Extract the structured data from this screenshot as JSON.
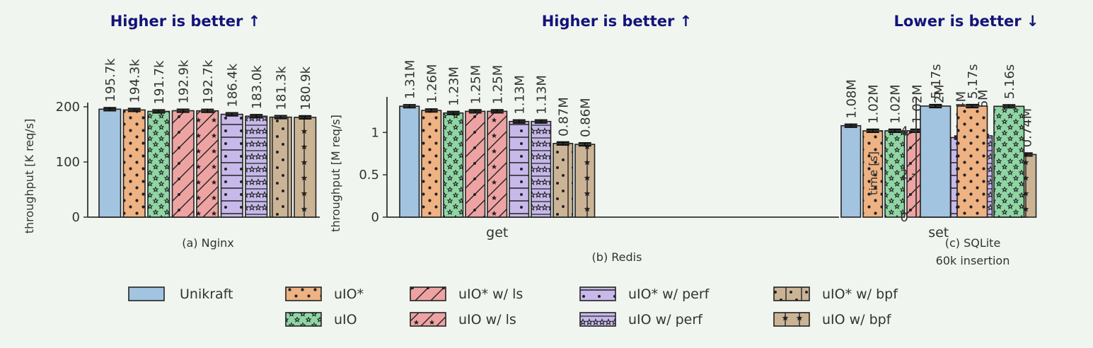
{
  "headers": {
    "higher": "Higher is better ↑",
    "lower": "Lower is better ↓"
  },
  "colors": {
    "Unikraft": "#a3c4e0",
    "uIO_star": "#eeb283",
    "uIO": "#8fd6a4",
    "ls": "#eea3a3",
    "perf": "#c7b9ea",
    "bpf": "#cbb496",
    "axis": "#333333",
    "background": "#f0f5ef",
    "header": "#13137a"
  },
  "legend": [
    {
      "label": "Unikraft",
      "variant": 0
    },
    {
      "label": "uIO*",
      "variant": 1
    },
    {
      "label": "uIO*  w/ ls",
      "variant": 3
    },
    {
      "label": "uIO*  w/ perf",
      "variant": 5
    },
    {
      "label": "uIO*  w/ bpf",
      "variant": 7
    },
    {
      "label": "uIO",
      "variant": 2
    },
    {
      "label": "uIO   w/ ls",
      "variant": 4
    },
    {
      "label": "uIO   w/ perf",
      "variant": 6
    },
    {
      "label": "uIO   w/ bpf",
      "variant": 8
    }
  ],
  "chart_data": [
    {
      "type": "bar",
      "id": "nginx",
      "header": "Higher is better ↑",
      "caption": "(a) Nginx",
      "ylabel": "throughput [K req/s]",
      "ylim": [
        0,
        200
      ],
      "yticks": [
        0,
        100,
        200
      ],
      "ytick_labels": [
        "0",
        "100",
        "200"
      ],
      "categories": [
        ""
      ],
      "series": [
        {
          "variant": 0,
          "values": [
            195.7
          ],
          "labels": [
            "195.7k"
          ]
        },
        {
          "variant": 1,
          "values": [
            194.3
          ],
          "labels": [
            "194.3k"
          ]
        },
        {
          "variant": 2,
          "values": [
            191.7
          ],
          "labels": [
            "191.7k"
          ]
        },
        {
          "variant": 3,
          "values": [
            192.9
          ],
          "labels": [
            "192.9k"
          ]
        },
        {
          "variant": 4,
          "values": [
            192.7
          ],
          "labels": [
            "192.7k"
          ]
        },
        {
          "variant": 5,
          "values": [
            186.4
          ],
          "labels": [
            "186.4k"
          ]
        },
        {
          "variant": 6,
          "values": [
            183.0
          ],
          "labels": [
            "183.0k"
          ]
        },
        {
          "variant": 7,
          "values": [
            181.3
          ],
          "labels": [
            "181.3k"
          ]
        },
        {
          "variant": 8,
          "values": [
            180.9
          ],
          "labels": [
            "180.9k"
          ]
        }
      ]
    },
    {
      "type": "bar",
      "id": "redis",
      "header": "Higher is better ↑",
      "caption": "(b) Redis",
      "ylabel": "throughput [M req/s]",
      "ylim": [
        0,
        1.37
      ],
      "yticks": [
        0,
        0.5,
        1
      ],
      "ytick_labels": [
        "0",
        "0.5",
        "1"
      ],
      "categories": [
        "get",
        "set"
      ],
      "series": [
        {
          "variant": 0,
          "values": [
            1.31,
            1.08
          ],
          "labels": [
            "1.31M",
            "1.08M"
          ]
        },
        {
          "variant": 1,
          "values": [
            1.26,
            1.02
          ],
          "labels": [
            "1.26M",
            "1.02M"
          ]
        },
        {
          "variant": 2,
          "values": [
            1.23,
            1.02
          ],
          "labels": [
            "1.23M",
            "1.02M"
          ]
        },
        {
          "variant": 3,
          "values": [
            1.25,
            1.02
          ],
          "labels": [
            "1.25M",
            "1.02M"
          ]
        },
        {
          "variant": 4,
          "values": [
            1.25,
            1.02
          ],
          "labels": [
            "1.25M",
            "1.02M"
          ]
        },
        {
          "variant": 5,
          "values": [
            1.13,
            0.94
          ],
          "labels": [
            "1.13M",
            "0.94M"
          ]
        },
        {
          "variant": 6,
          "values": [
            1.13,
            0.96
          ],
          "labels": [
            "1.13M",
            "0.96M"
          ]
        },
        {
          "variant": 7,
          "values": [
            0.87,
            0.74
          ],
          "labels": [
            "0.87M",
            "0.74M"
          ]
        },
        {
          "variant": 8,
          "values": [
            0.86,
            0.74
          ],
          "labels": [
            "0.86M",
            "0.74M"
          ]
        }
      ]
    },
    {
      "type": "bar",
      "id": "sqlite",
      "header": "Lower is better ↓",
      "caption": "(c) SQLite",
      "caption2": "60k insertion",
      "ylabel": "time [s]",
      "ylim": [
        0,
        5.4
      ],
      "yticks": [
        0,
        2,
        4
      ],
      "ytick_labels": [
        "0",
        "2",
        "4"
      ],
      "categories": [
        ""
      ],
      "series": [
        {
          "variant": 0,
          "values": [
            5.17
          ],
          "labels": [
            "5.17s"
          ]
        },
        {
          "variant": 1,
          "values": [
            5.17
          ],
          "labels": [
            "5.17s"
          ]
        },
        {
          "variant": 2,
          "values": [
            5.16
          ],
          "labels": [
            "5.16s"
          ]
        }
      ]
    }
  ]
}
